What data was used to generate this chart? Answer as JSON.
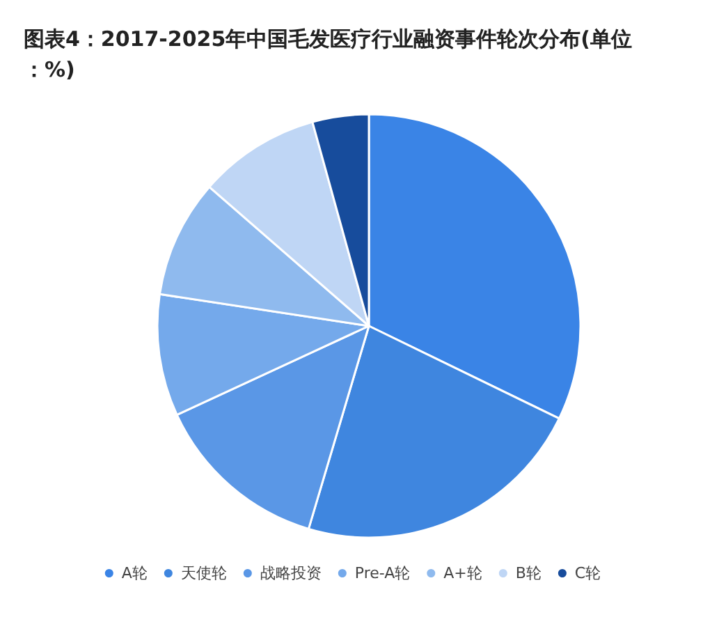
{
  "chart_data": {
    "type": "pie",
    "title": "图表4：2017-2025年中国毛发医疗行业融资事件轮次分布(单位：%)",
    "categories": [
      "A轮",
      "天使轮",
      "战略投资",
      "Pre-A轮",
      "A+轮",
      "B轮",
      "C轮"
    ],
    "values": [
      32.2,
      22.4,
      13.5,
      9.3,
      9.0,
      9.3,
      4.3
    ],
    "colors": [
      "#3a84e6",
      "#3f86df",
      "#5a97e6",
      "#74a9eb",
      "#8fbaee",
      "#bfd6f5",
      "#174c9c"
    ],
    "legend": "bottom"
  }
}
